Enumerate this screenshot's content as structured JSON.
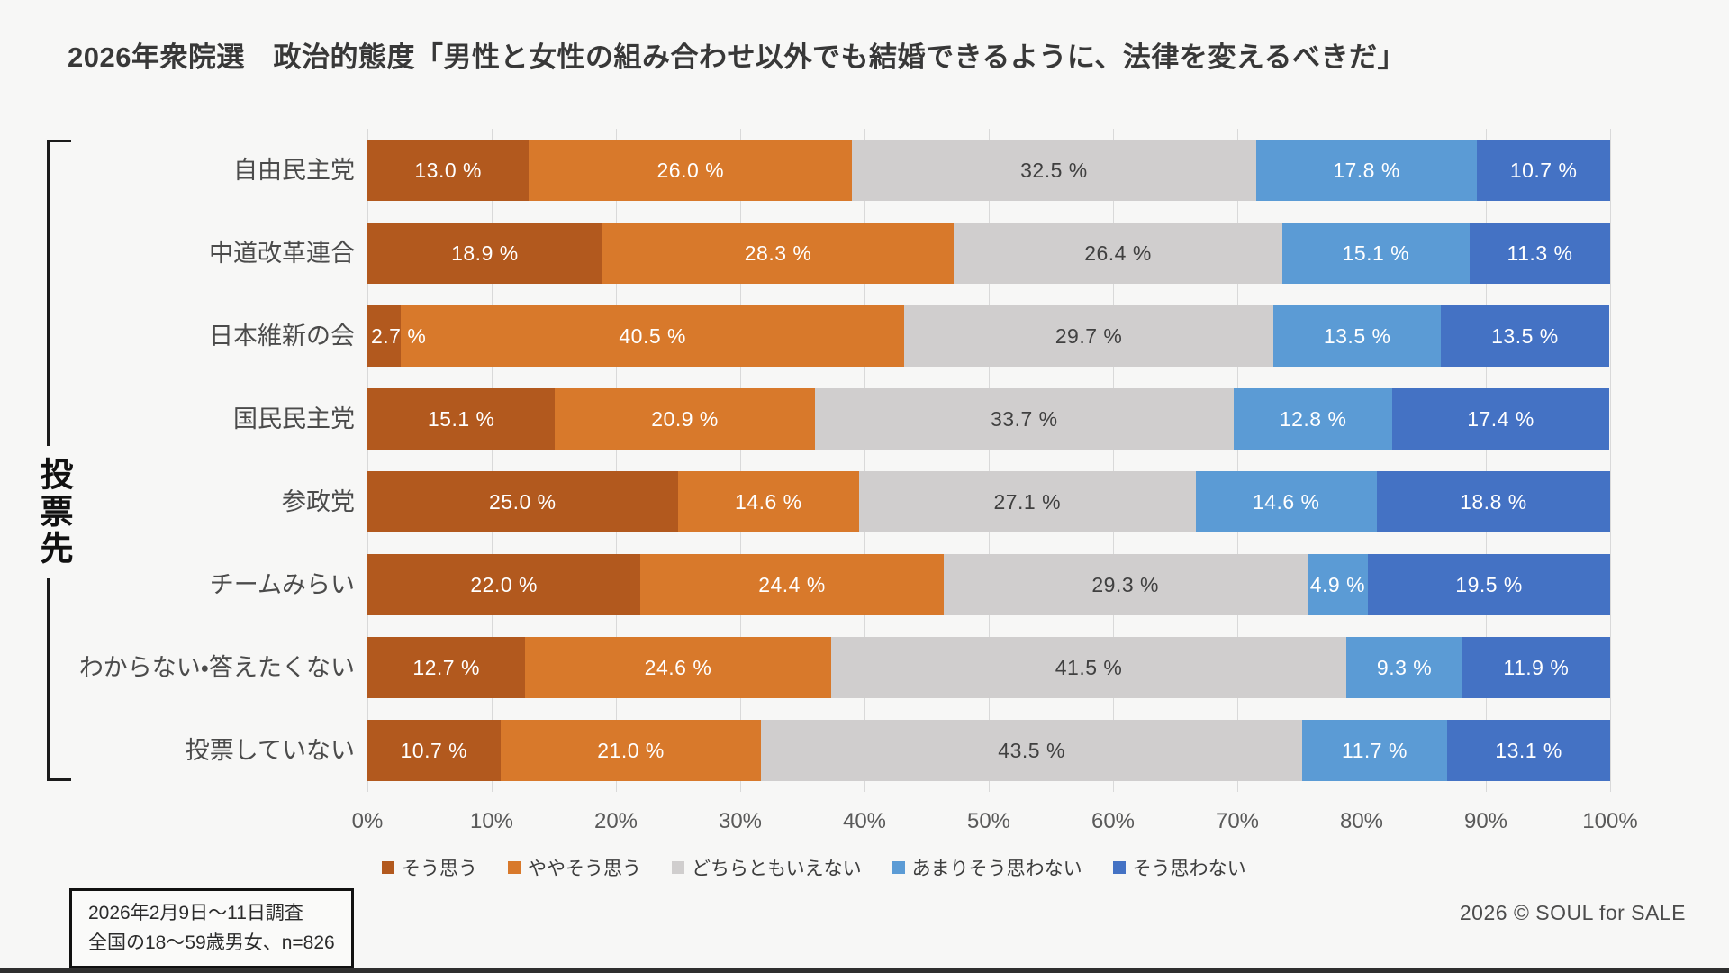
{
  "title": "2026年衆院選　政治的態度「男性と女性の組み合わせ以外でも結婚できるように、法律を変えるべきだ」",
  "group_axis_label": "投票先",
  "chart_data": {
    "type": "bar",
    "stacked": true,
    "orientation": "horizontal",
    "categories": [
      "自由民主党",
      "中道改革連合",
      "日本維新の会",
      "国民民主党",
      "参政党",
      "チームみらい",
      "わからない・答えたくない",
      "投票していない"
    ],
    "series": [
      {
        "name": "そう思う",
        "color": "#b2591e",
        "label_color": "#ffffff",
        "values": [
          13.0,
          18.9,
          2.7,
          15.1,
          25.0,
          22.0,
          12.7,
          10.7
        ]
      },
      {
        "name": "ややそう思う",
        "color": "#d8792b",
        "label_color": "#ffffff",
        "values": [
          26.0,
          28.3,
          40.5,
          20.9,
          14.6,
          24.4,
          24.6,
          21.0
        ]
      },
      {
        "name": "どちらともいえない",
        "color": "#d0cece",
        "label_color": "#404040",
        "values": [
          32.5,
          26.4,
          29.7,
          33.7,
          27.1,
          29.3,
          41.5,
          43.5
        ]
      },
      {
        "name": "あまりそう思わない",
        "color": "#5b9bd5",
        "label_color": "#ffffff",
        "values": [
          17.8,
          15.1,
          13.5,
          12.8,
          14.6,
          4.9,
          9.3,
          11.7
        ]
      },
      {
        "name": "そう思わない",
        "color": "#4472c4",
        "label_color": "#ffffff",
        "values": [
          10.7,
          11.3,
          13.5,
          17.4,
          18.8,
          19.5,
          11.9,
          13.1
        ]
      }
    ],
    "x_ticks": [
      "0%",
      "10%",
      "20%",
      "30%",
      "40%",
      "50%",
      "60%",
      "70%",
      "80%",
      "90%",
      "100%"
    ],
    "xlim": [
      0,
      100
    ],
    "value_suffix": " %",
    "grid": true,
    "legend_position": "bottom"
  },
  "footer": {
    "note_line1": "2026年2月9日〜11日調査",
    "note_line2": "全国の18〜59歳男女、n=826",
    "credit": "2026 © SOUL for SALE"
  }
}
